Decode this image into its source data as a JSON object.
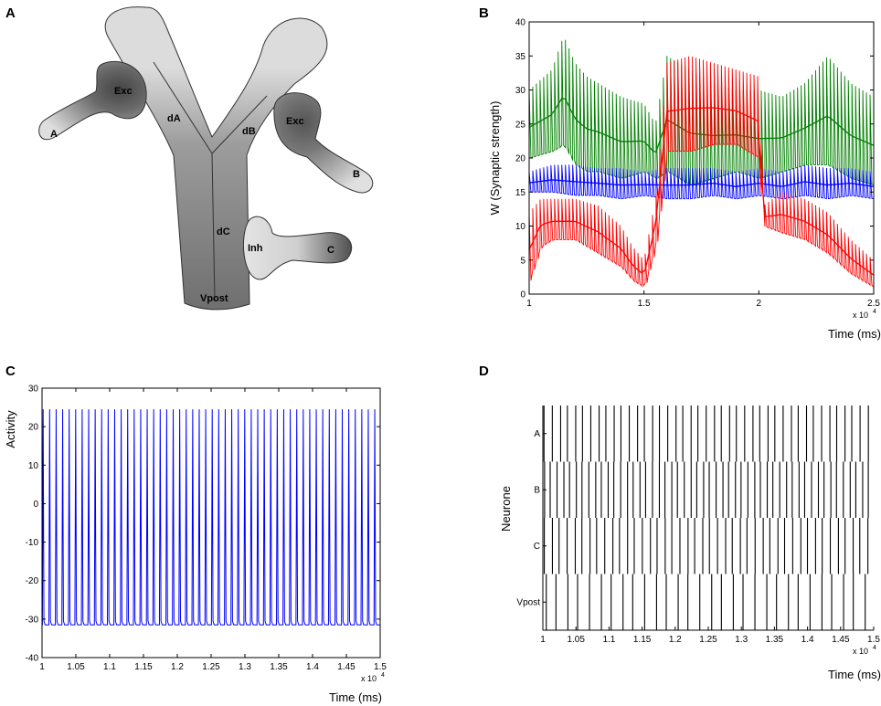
{
  "panels": {
    "A": {
      "letter": "A",
      "labels": {
        "exc1": "Exc",
        "exc2": "Exc",
        "inh": "Inh",
        "a": "A",
        "b": "B",
        "c": "C",
        "dA": "dA",
        "dB": "dB",
        "dC": "dC",
        "vpost": "Vpost"
      }
    },
    "B": {
      "letter": "B"
    },
    "C": {
      "letter": "C"
    },
    "D": {
      "letter": "D"
    }
  },
  "colors": {
    "green": "#008000",
    "blue": "#0000ff",
    "red": "#ff0000",
    "black": "#000000",
    "dendrite_light": "#dcdcdc",
    "dendrite_dark": "#7a7a7a"
  },
  "chart_data": [
    {
      "id": "B",
      "type": "line",
      "xlabel": "Time (ms)",
      "ylabel": "W (Synaptic strength)",
      "x_multiplier": "x 10",
      "x_exponent": "4",
      "xlim": [
        1,
        2.5
      ],
      "ylim": [
        0,
        40
      ],
      "xticks": [
        "1",
        "1.5",
        "2",
        "2.5"
      ],
      "yticks": [
        "0",
        "5",
        "10",
        "15",
        "20",
        "25",
        "30",
        "35",
        "40"
      ],
      "series": [
        {
          "color": "#008000",
          "x": [
            1.0,
            1.1,
            1.15,
            1.2,
            1.25,
            1.3,
            1.4,
            1.5,
            1.55,
            1.6,
            1.7,
            1.8,
            1.9,
            2.0,
            2.1,
            2.2,
            2.3,
            2.4,
            2.5
          ],
          "upper": [
            30,
            33,
            38,
            34,
            32,
            31,
            29,
            28,
            25,
            35,
            33,
            31,
            30,
            30,
            29,
            31,
            35,
            31,
            29
          ],
          "lower": [
            20,
            21,
            22,
            19,
            18,
            18,
            17,
            18,
            17,
            18,
            16,
            17,
            18,
            17,
            18,
            19,
            19,
            17,
            16
          ]
        },
        {
          "color": "#0000ff",
          "x": [
            1.0,
            1.1,
            1.2,
            1.3,
            1.4,
            1.5,
            1.6,
            1.7,
            1.8,
            1.9,
            2.0,
            2.1,
            2.2,
            2.3,
            2.4,
            2.5
          ],
          "upper": [
            18,
            19,
            19,
            18.5,
            18.5,
            18,
            18.5,
            18.5,
            18.5,
            18,
            18.5,
            18,
            19,
            18.5,
            18.5,
            18
          ],
          "lower": [
            15,
            15,
            14.5,
            14.5,
            14,
            14.5,
            14,
            14,
            14.5,
            14,
            14.5,
            14,
            14.5,
            14,
            14.5,
            14
          ]
        },
        {
          "color": "#ff0000",
          "x": [
            1.0,
            1.05,
            1.1,
            1.2,
            1.3,
            1.4,
            1.45,
            1.5,
            1.55,
            1.6,
            1.7,
            1.8,
            1.9,
            2.0,
            2.02,
            2.1,
            2.2,
            2.3,
            2.4,
            2.5
          ],
          "upper": [
            12,
            14,
            14,
            14,
            13,
            10,
            7,
            5,
            14,
            34,
            35,
            34,
            33,
            32,
            13,
            15,
            14,
            12,
            8,
            5
          ],
          "lower": [
            2,
            7,
            8,
            8,
            6,
            4,
            2,
            1,
            7,
            21,
            21,
            22,
            22,
            20,
            10,
            9,
            8,
            6,
            3,
            1
          ]
        }
      ]
    },
    {
      "id": "C",
      "type": "line",
      "xlabel": "Time (ms)",
      "ylabel": "Activity",
      "x_multiplier": "x 10",
      "x_exponent": "4",
      "xlim": [
        1,
        1.5
      ],
      "ylim": [
        -40,
        30
      ],
      "xticks": [
        "1",
        "1.05",
        "1.1",
        "1.15",
        "1.2",
        "1.25",
        "1.3",
        "1.35",
        "1.4",
        "1.45",
        "1.5"
      ],
      "yticks": [
        "-40",
        "-30",
        "-20",
        "-10",
        "0",
        "10",
        "20",
        "30"
      ],
      "spike_count": 52,
      "spike_peak": 24.5,
      "rest_value": -31.5,
      "color": "#0000ff"
    },
    {
      "id": "D",
      "type": "scatter",
      "xlabel": "Time (ms)",
      "ylabel": "Neurone",
      "x_multiplier": "x 10",
      "x_exponent": "4",
      "xlim": [
        1,
        1.5
      ],
      "xticks": [
        "1",
        "1.05",
        "1.1",
        "1.15",
        "1.2",
        "1.25",
        "1.3",
        "1.35",
        "1.4",
        "1.45",
        "1.5"
      ],
      "rows": [
        "A",
        "B",
        "C",
        "Vpost"
      ],
      "spike_counts": [
        43,
        52,
        44,
        30
      ]
    }
  ]
}
